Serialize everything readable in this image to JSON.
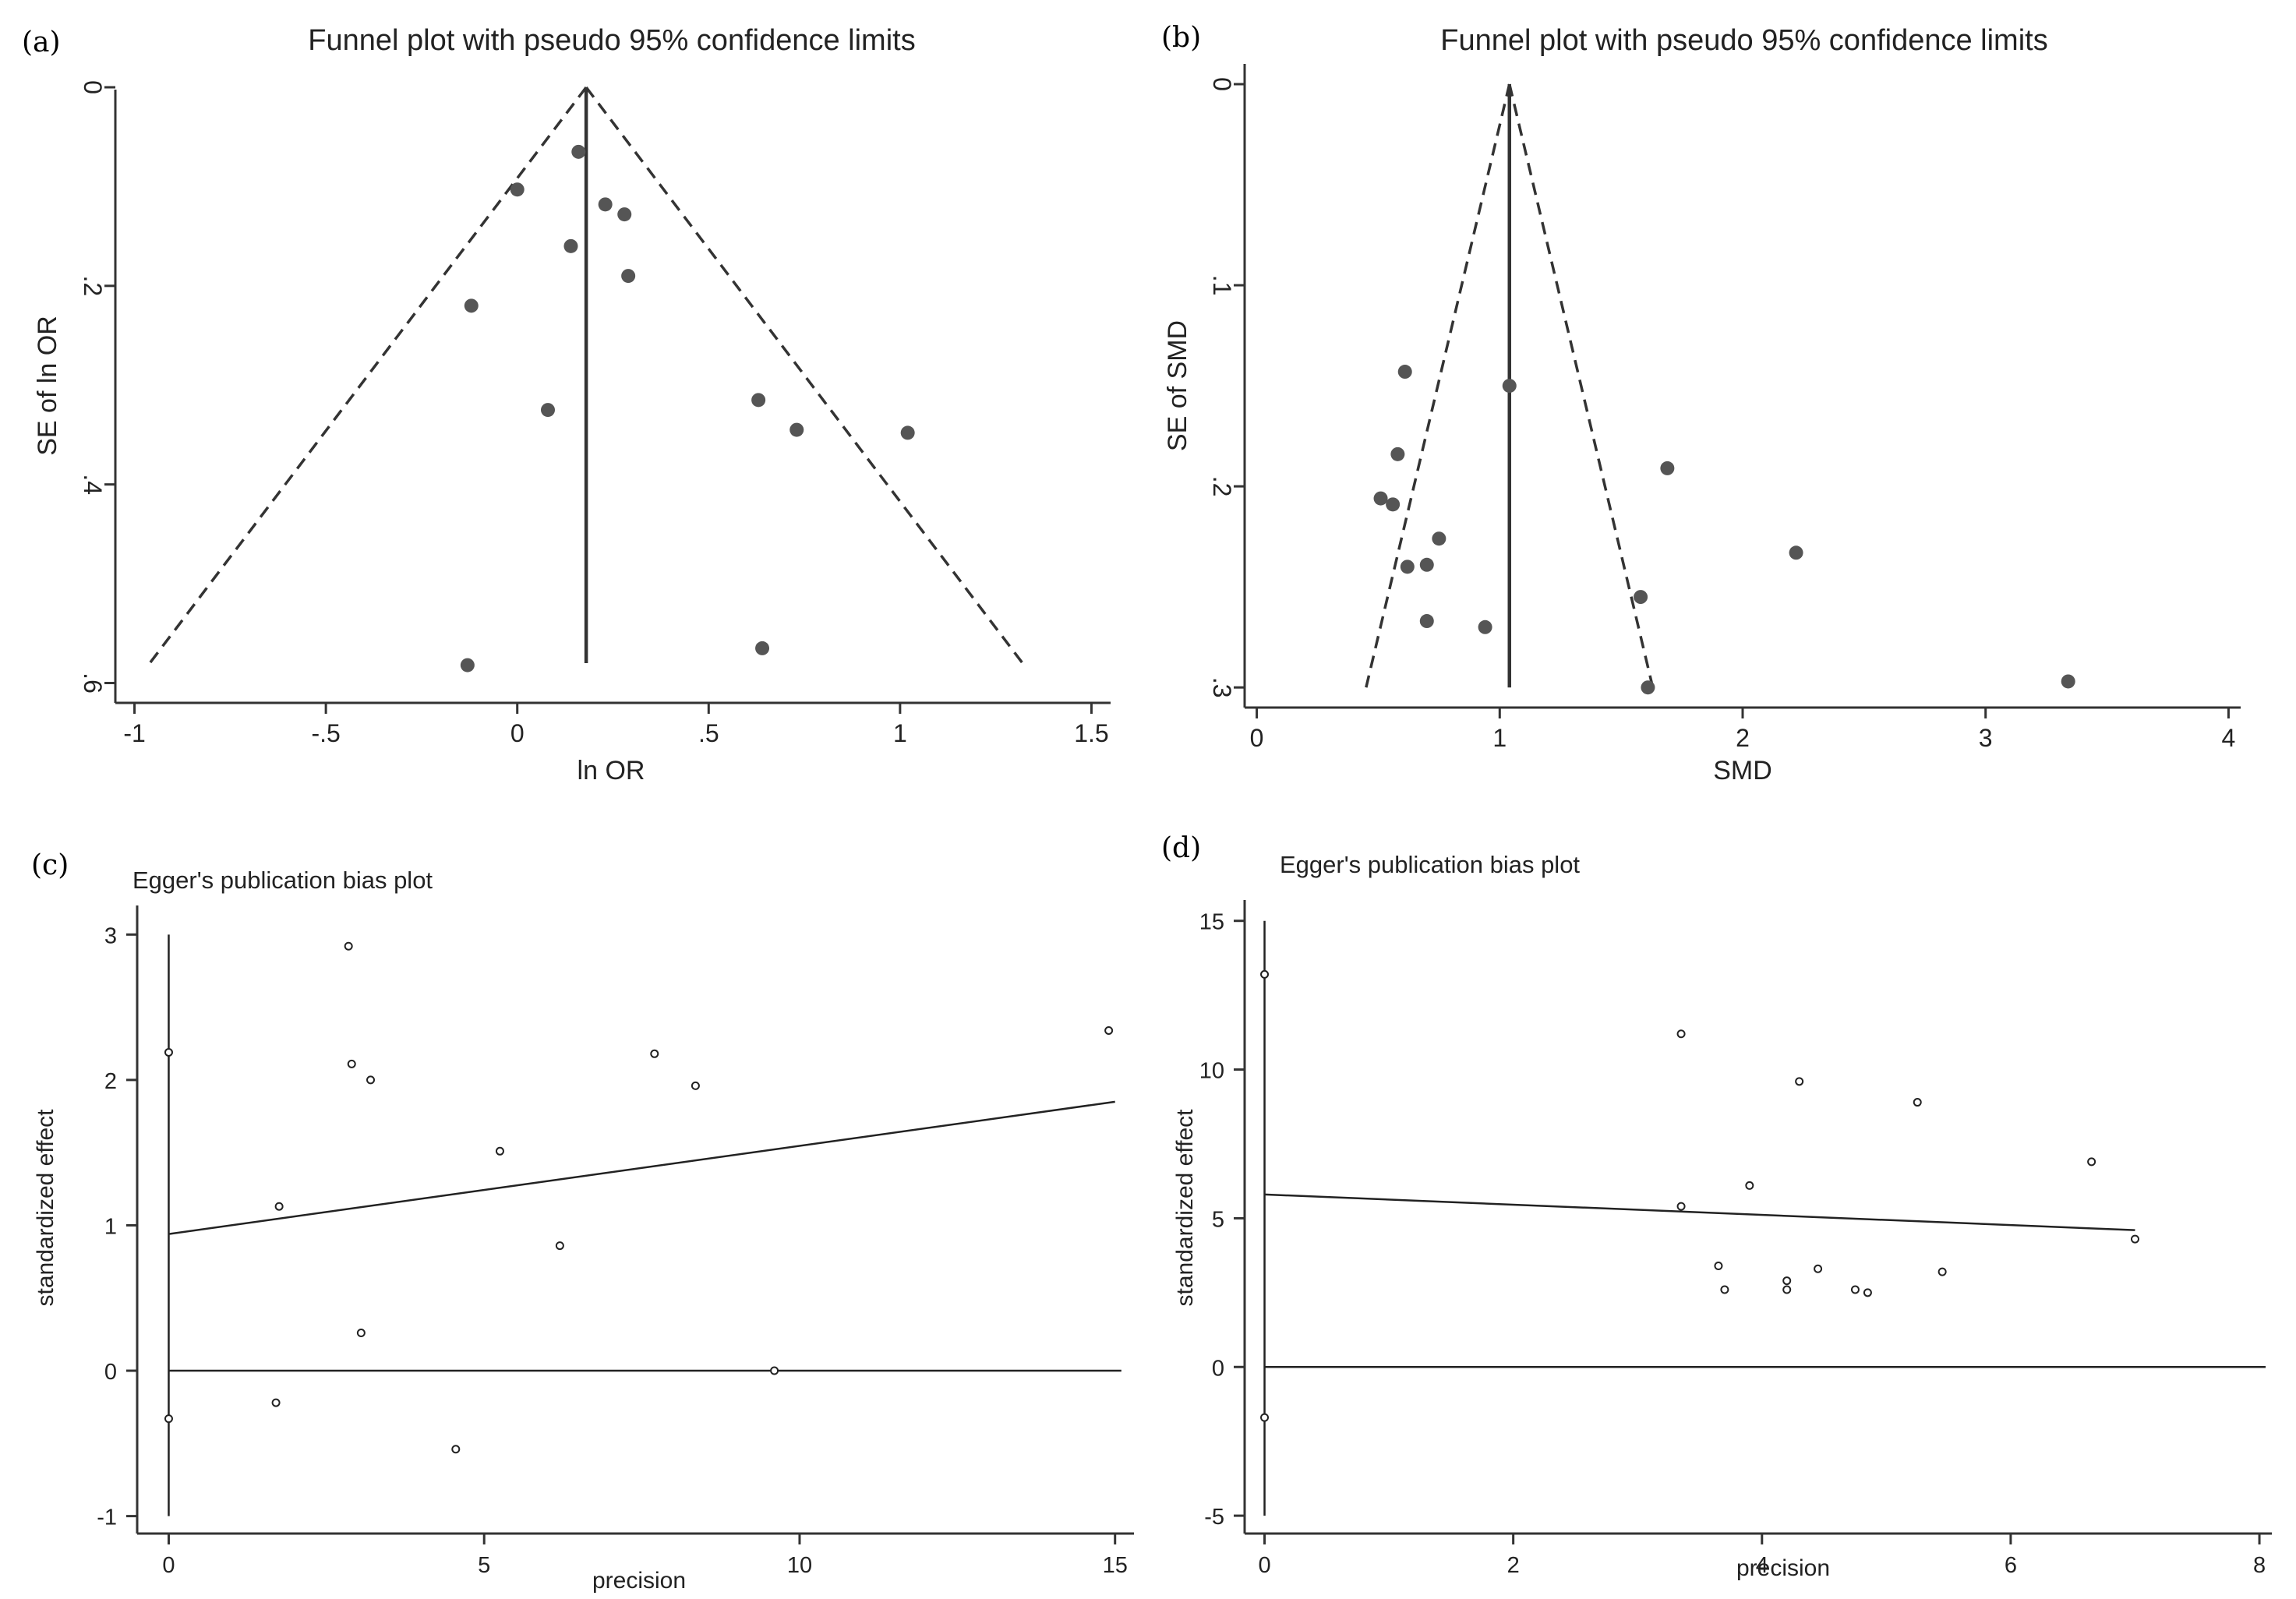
{
  "chart_data": [
    {
      "id": "a",
      "type": "scatter",
      "panel_label": "(a)",
      "title": "Funnel plot with pseudo 95% confidence limits",
      "xlabel": "ln OR",
      "ylabel": "SE of ln OR",
      "xlim": [
        -1.05,
        1.55
      ],
      "ylim": [
        0,
        0.62
      ],
      "y_reversed": true,
      "x_ticks": [
        -1,
        -0.5,
        0,
        0.5,
        1,
        1.5
      ],
      "x_tick_labels": [
        "-1",
        "-.5",
        "0",
        ".5",
        "1",
        "1.5"
      ],
      "y_ticks": [
        0,
        0.2,
        0.4,
        0.6
      ],
      "y_tick_labels": [
        "0",
        ".2",
        ".4",
        ".6"
      ],
      "pooled_estimate": 0.18,
      "funnel": {
        "apex": [
          0.18,
          0
        ],
        "se_max": 0.58,
        "lower_x": -0.96,
        "upper_x": 1.32
      },
      "points": [
        [
          0.16,
          0.065
        ],
        [
          0.0,
          0.103
        ],
        [
          0.23,
          0.118
        ],
        [
          0.28,
          0.128
        ],
        [
          0.14,
          0.16
        ],
        [
          0.29,
          0.19
        ],
        [
          -0.12,
          0.22
        ],
        [
          0.63,
          0.315
        ],
        [
          0.08,
          0.325
        ],
        [
          0.73,
          0.345
        ],
        [
          1.02,
          0.348
        ],
        [
          0.64,
          0.565
        ],
        [
          -0.13,
          0.582
        ]
      ]
    },
    {
      "id": "b",
      "type": "scatter",
      "panel_label": "(b)",
      "title": "Funnel plot with pseudo 95% confidence limits",
      "xlabel": "SMD",
      "ylabel": "SE of SMD",
      "xlim": [
        -0.05,
        4.05
      ],
      "ylim": [
        0,
        0.31
      ],
      "y_reversed": true,
      "x_ticks": [
        0,
        1,
        2,
        3,
        4
      ],
      "x_tick_labels": [
        "0",
        "1",
        "2",
        "3",
        "4"
      ],
      "y_ticks": [
        0,
        0.1,
        0.2,
        0.3
      ],
      "y_tick_labels": [
        "0",
        ".1",
        ".2",
        ".3"
      ],
      "pooled_estimate": 1.04,
      "funnel": {
        "apex": [
          1.04,
          0
        ],
        "se_max": 0.3,
        "lower_x": 0.45,
        "upper_x": 1.63
      },
      "points": [
        [
          0.61,
          0.143
        ],
        [
          1.04,
          0.15
        ],
        [
          0.58,
          0.184
        ],
        [
          1.69,
          0.191
        ],
        [
          0.51,
          0.206
        ],
        [
          0.56,
          0.209
        ],
        [
          0.75,
          0.226
        ],
        [
          2.22,
          0.233
        ],
        [
          0.62,
          0.24
        ],
        [
          0.7,
          0.239
        ],
        [
          1.58,
          0.255
        ],
        [
          0.7,
          0.267
        ],
        [
          0.94,
          0.27
        ],
        [
          1.61,
          0.3
        ],
        [
          3.34,
          0.297
        ]
      ]
    },
    {
      "id": "c",
      "type": "scatter",
      "panel_label": "(c)",
      "title": "Egger's publication bias plot",
      "xlabel": "precision",
      "ylabel": "standardized effect",
      "xlim": [
        -0.5,
        15.3
      ],
      "ylim": [
        -1.12,
        3.2
      ],
      "x_ticks": [
        0,
        5,
        10,
        15
      ],
      "x_tick_labels": [
        "0",
        "5",
        "10",
        "15"
      ],
      "y_ticks": [
        -1,
        0,
        1,
        2,
        3
      ],
      "y_tick_labels": [
        "-1",
        "0",
        "1",
        "2",
        "3"
      ],
      "zero_line": {
        "x_start": 0,
        "x_end": 15.1
      },
      "regression_line": [
        [
          0,
          0.94
        ],
        [
          15,
          1.85
        ]
      ],
      "intercept_ci": {
        "x": 0,
        "low": -1.0,
        "high": 3.0,
        "estimate": 0.94
      },
      "points": [
        [
          0,
          2.19
        ],
        [
          0,
          -0.33
        ],
        [
          1.75,
          1.13
        ],
        [
          1.7,
          -0.22
        ],
        [
          2.85,
          2.92
        ],
        [
          2.9,
          2.11
        ],
        [
          3.2,
          2.0
        ],
        [
          3.05,
          0.26
        ],
        [
          4.55,
          -0.54
        ],
        [
          5.25,
          1.51
        ],
        [
          6.2,
          0.86
        ],
        [
          7.7,
          2.18
        ],
        [
          8.35,
          1.96
        ],
        [
          9.6,
          0.0
        ],
        [
          14.9,
          2.34
        ]
      ]
    },
    {
      "id": "d",
      "type": "scatter",
      "panel_label": "(d)",
      "title": "Egger's publication bias plot",
      "xlabel": "precision",
      "ylabel": "standardized effect",
      "xlim": [
        -0.16,
        8.1
      ],
      "ylim": [
        -5.6,
        15.7
      ],
      "x_ticks": [
        0,
        2,
        4,
        6,
        8
      ],
      "x_tick_labels": [
        "0",
        "2",
        "4",
        "6",
        "8"
      ],
      "y_ticks": [
        -5,
        0,
        5,
        10,
        15
      ],
      "y_tick_labels": [
        "-5",
        "0",
        "5",
        "10",
        "15"
      ],
      "zero_line": {
        "x_start": 0,
        "x_end": 8.05
      },
      "regression_line": [
        [
          0,
          5.8
        ],
        [
          7.0,
          4.6
        ]
      ],
      "intercept_ci": {
        "x": 0,
        "low": -5.0,
        "high": 15.0,
        "estimate": 5.8
      },
      "points": [
        [
          0,
          13.2
        ],
        [
          0,
          -1.7
        ],
        [
          3.35,
          11.2
        ],
        [
          3.35,
          5.4
        ],
        [
          3.65,
          3.4
        ],
        [
          3.7,
          2.6
        ],
        [
          3.9,
          6.1
        ],
        [
          4.2,
          2.6
        ],
        [
          4.2,
          2.9
        ],
        [
          4.3,
          9.6
        ],
        [
          4.45,
          3.3
        ],
        [
          4.75,
          2.6
        ],
        [
          4.85,
          2.5
        ],
        [
          5.25,
          8.9
        ],
        [
          5.45,
          3.2
        ],
        [
          6.65,
          6.9
        ],
        [
          7.0,
          4.3
        ]
      ]
    }
  ]
}
